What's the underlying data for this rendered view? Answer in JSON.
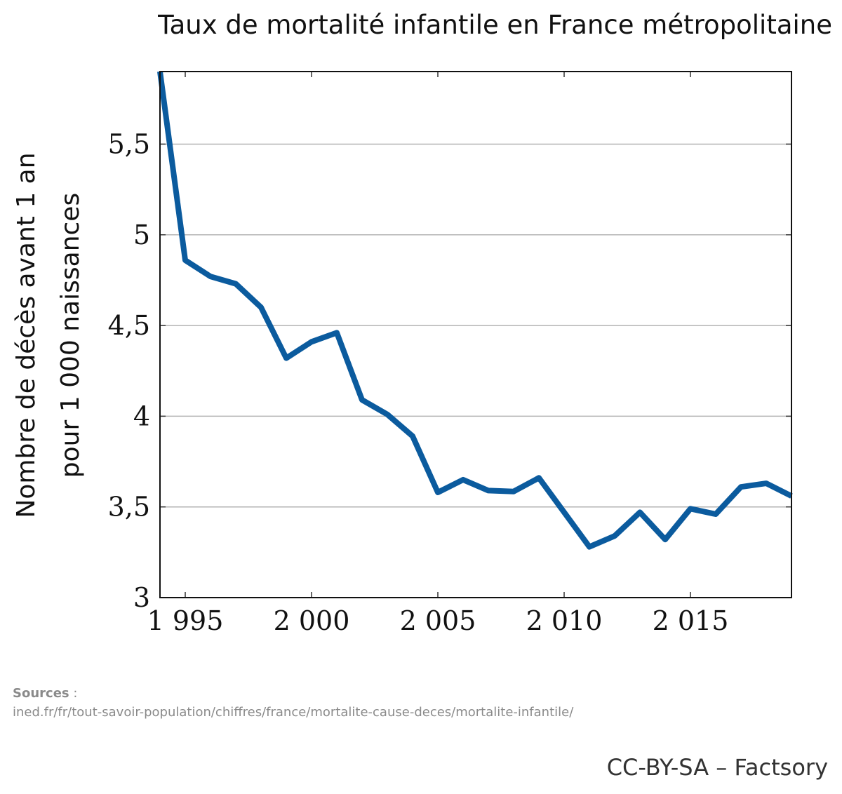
{
  "chart_data": {
    "type": "line",
    "title": "Taux de mortalité infantile en France métropolitaine",
    "ylabel_line1": "Nombre de décès avant 1 an",
    "ylabel_line2": "pour 1 000 naissances",
    "xlabel": "",
    "xlim": [
      1994,
      2019
    ],
    "ylim": [
      3,
      5.9
    ],
    "x_ticks": [
      1995,
      2000,
      2005,
      2010,
      2015
    ],
    "x_tick_labels": [
      "1 995",
      "2 000",
      "2 005",
      "2 010",
      "2 015"
    ],
    "y_ticks": [
      3,
      3.5,
      4,
      4.5,
      5,
      5.5
    ],
    "y_tick_labels": [
      "3",
      "3,5",
      "4",
      "4,5",
      "5",
      "5,5"
    ],
    "grid": "horizontal",
    "line_color": "#0b5b9e",
    "series": [
      {
        "name": "Taux de mortalité infantile",
        "x": [
          1994,
          1995,
          1996,
          1997,
          1998,
          1999,
          2000,
          2001,
          2002,
          2003,
          2004,
          2005,
          2006,
          2007,
          2008,
          2009,
          2010,
          2011,
          2012,
          2013,
          2014,
          2015,
          2016,
          2017,
          2018,
          2019
        ],
        "values": [
          5.9,
          4.86,
          4.77,
          4.73,
          4.6,
          4.32,
          4.41,
          4.46,
          4.09,
          4.01,
          3.89,
          3.58,
          3.65,
          3.59,
          3.585,
          3.66,
          3.47,
          3.28,
          3.34,
          3.47,
          3.32,
          3.49,
          3.46,
          3.61,
          3.63,
          3.56
        ]
      }
    ]
  },
  "sources": {
    "label": "Sources",
    "separator": " :",
    "url": "ined.fr/fr/tout-savoir-population/chiffres/france/mortalite-cause-deces/mortalite-infantile/"
  },
  "credit": "CC-BY-SA – Factsory"
}
